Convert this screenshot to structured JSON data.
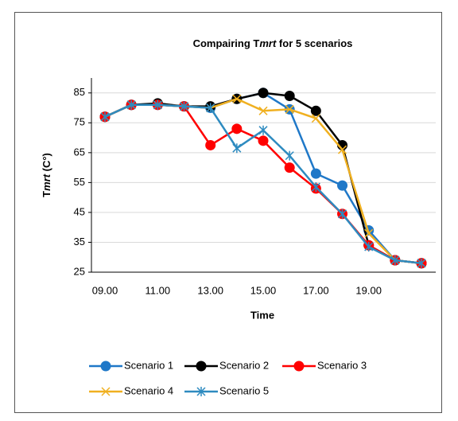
{
  "chart_data": {
    "type": "line",
    "title": [
      "Compairing T",
      "mrt",
      " for 5 scenarios"
    ],
    "y_label": [
      "T",
      "mrt",
      " (C°)"
    ],
    "x_label": "Time",
    "categories": [
      "09.00",
      null,
      "11.00",
      null,
      "13.00",
      null,
      "15.00",
      null,
      "17.00",
      null,
      "19.00",
      null,
      null
    ],
    "ylim": [
      25,
      90
    ],
    "yticks": [
      25,
      35,
      45,
      55,
      65,
      75,
      85
    ],
    "grid": true,
    "series": [
      {
        "name": "Scenario 1",
        "color": "#1f78c8",
        "marker": "circle",
        "values": [
          77,
          81,
          81,
          80.5,
          80,
          83,
          85,
          79.5,
          58,
          54,
          39,
          29,
          28
        ]
      },
      {
        "name": "Scenario 2",
        "color": "#000000",
        "marker": "circle",
        "values": [
          77,
          81,
          81.5,
          80.5,
          80.5,
          83,
          85,
          84,
          79,
          67.5,
          34,
          29,
          28
        ]
      },
      {
        "name": "Scenario 3",
        "color": "#ff0000",
        "marker": "circle",
        "values": [
          77,
          81,
          81,
          80.5,
          67.5,
          73,
          69,
          60,
          53,
          44.5,
          34,
          29,
          28
        ]
      },
      {
        "name": "Scenario 4",
        "color": "#f0b020",
        "marker": "x",
        "values": [
          77,
          81,
          81,
          80.5,
          80,
          83,
          79,
          79.5,
          76.5,
          66,
          38,
          29,
          28
        ]
      },
      {
        "name": "Scenario 5",
        "color": "#2e8bc0",
        "marker": "asterisk",
        "values": [
          77,
          81,
          81,
          80.5,
          80,
          66.5,
          72.5,
          64,
          53.5,
          44.5,
          33.5,
          29,
          28
        ]
      }
    ]
  }
}
